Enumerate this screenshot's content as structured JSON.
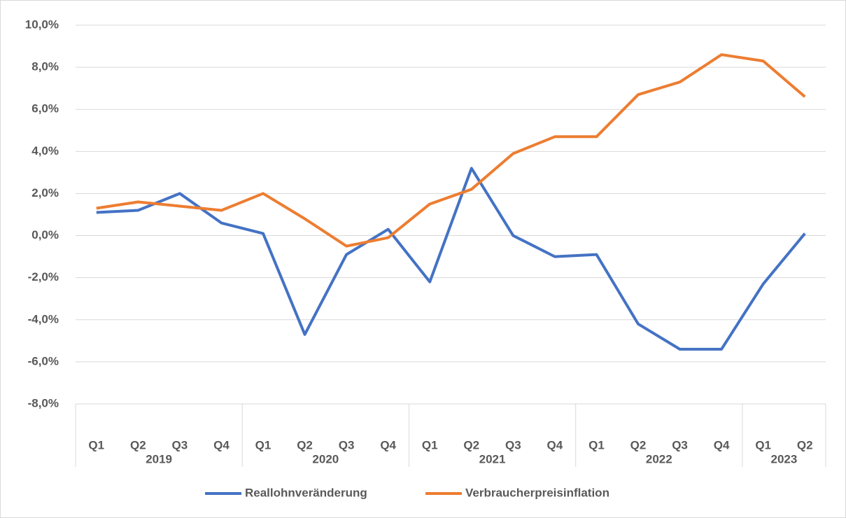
{
  "chart_data": {
    "type": "line",
    "category_groups": [
      {
        "label": "2019",
        "categories": [
          "Q1",
          "Q2",
          "Q3",
          "Q4"
        ]
      },
      {
        "label": "2020",
        "categories": [
          "Q1",
          "Q2",
          "Q3",
          "Q4"
        ]
      },
      {
        "label": "2021",
        "categories": [
          "Q1",
          "Q2",
          "Q3",
          "Q4"
        ]
      },
      {
        "label": "2022",
        "categories": [
          "Q1",
          "Q2",
          "Q3",
          "Q4"
        ]
      },
      {
        "label": "2023",
        "categories": [
          "Q1",
          "Q2"
        ]
      }
    ],
    "series": [
      {
        "name": "Reallohnveränderung",
        "color": "#4472c4",
        "values": [
          1.1,
          1.2,
          2.0,
          0.6,
          0.1,
          -4.7,
          -0.9,
          0.3,
          -2.2,
          3.2,
          0.0,
          -1.0,
          -0.9,
          -4.2,
          -5.4,
          -5.4,
          -2.3,
          0.1
        ]
      },
      {
        "name": "Verbraucherpreisinflation",
        "color": "#ed7d31",
        "values": [
          1.3,
          1.6,
          1.4,
          1.2,
          2.0,
          0.8,
          -0.5,
          -0.1,
          1.5,
          2.2,
          3.9,
          4.7,
          4.7,
          6.7,
          7.3,
          8.6,
          8.3,
          6.6
        ]
      }
    ],
    "ylim": [
      -8,
      10
    ],
    "yticks": [
      {
        "value": -8,
        "label": "-8,0%"
      },
      {
        "value": -6,
        "label": "-6,0%"
      },
      {
        "value": -4,
        "label": "-4,0%"
      },
      {
        "value": -2,
        "label": "-2,0%"
      },
      {
        "value": 0,
        "label": "0,0%"
      },
      {
        "value": 2,
        "label": "2,0%"
      },
      {
        "value": 4,
        "label": "4,0%"
      },
      {
        "value": 6,
        "label": "6,0%"
      },
      {
        "value": 8,
        "label": "8,0%"
      },
      {
        "value": 10,
        "label": "10,0%"
      }
    ],
    "grid": true,
    "legend": "bottom"
  }
}
